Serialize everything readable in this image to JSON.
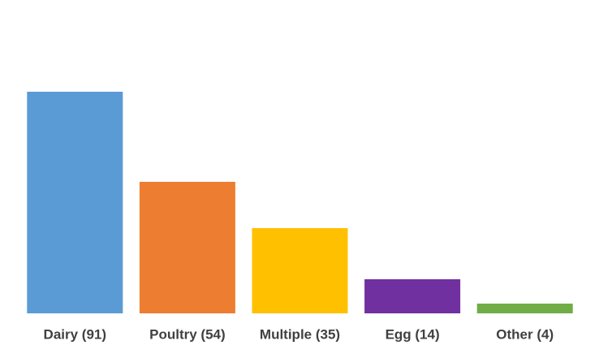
{
  "chart_data": {
    "type": "bar",
    "categories": [
      "Dairy (91)",
      "Poultry (54)",
      "Multiple (35)",
      "Egg (14)",
      "Other (4)"
    ],
    "values": [
      91,
      54,
      35,
      14,
      4
    ],
    "colors": [
      "#5b9bd5",
      "#ed7d31",
      "#ffc000",
      "#7030a0",
      "#70ad47"
    ]
  }
}
